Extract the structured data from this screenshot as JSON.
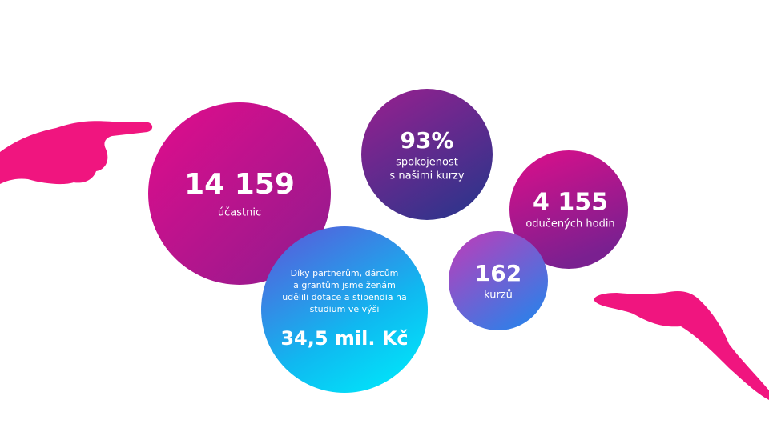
{
  "stats": [
    {
      "value": "14 159",
      "label": [
        "účastnic"
      ]
    },
    {
      "value": "93%",
      "label": [
        "spokojenost",
        "s našimi kurzy"
      ]
    },
    {
      "value": "4 155",
      "label": [
        "odučených hodin"
      ]
    },
    {
      "value": "162",
      "label": [
        "kurzů"
      ]
    }
  ],
  "funding": {
    "text": [
      "Díky partnerům, dárcům",
      "a grantům jsme ženám",
      "udělili dotace a stipendia na",
      "studium ve výši"
    ],
    "amount": "34,5 mil. Kč"
  }
}
